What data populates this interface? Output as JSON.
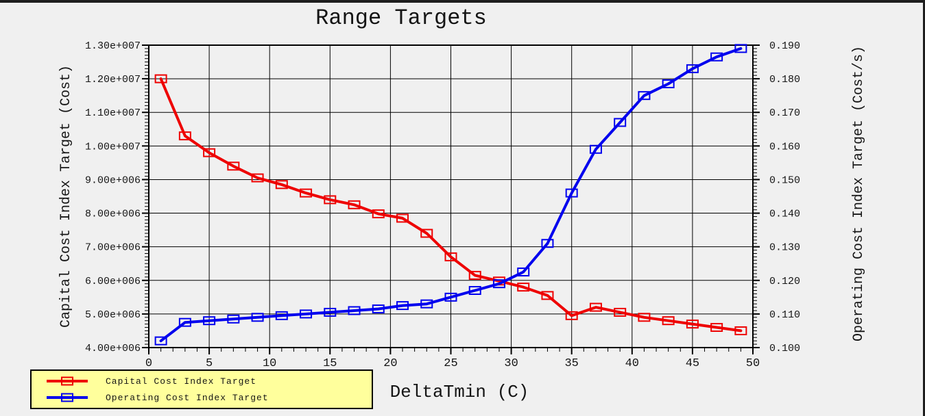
{
  "chart_data": {
    "type": "line",
    "title": "Range Targets",
    "xlabel": "DeltaTmin (C)",
    "grid": true,
    "legend_position": "bottom-left",
    "x_axis": {
      "min": 0,
      "max": 50,
      "major_step": 5,
      "minor_step": 1,
      "tick_labels": [
        "0",
        "5",
        "10",
        "15",
        "20",
        "25",
        "30",
        "35",
        "40",
        "45",
        "50"
      ]
    },
    "left_axis": {
      "label": "Capital Cost Index Target (Cost)",
      "min": 4000000,
      "max": 13000000,
      "major_step": 1000000,
      "minor_step": 100000,
      "tick_labels_top_to_bottom": [
        "1.30e+007",
        "1.20e+007",
        "1.10e+007",
        "1.00e+007",
        "9.00e+006",
        "8.00e+006",
        "7.00e+006",
        "6.00e+006",
        "5.00e+006",
        "4.00e+006"
      ]
    },
    "right_axis": {
      "label": "Operating Cost Index Target (Cost/s)",
      "min": 0.1,
      "max": 0.19,
      "major_step": 0.01,
      "minor_step": 0.001,
      "tick_labels_top_to_bottom": [
        "0.190",
        "0.180",
        "0.170",
        "0.160",
        "0.150",
        "0.140",
        "0.130",
        "0.120",
        "0.110",
        "0.100"
      ]
    },
    "x": [
      1,
      3,
      5,
      7,
      9,
      11,
      13,
      15,
      17,
      19,
      21,
      23,
      25,
      27,
      29,
      31,
      33,
      35,
      37,
      39,
      41,
      43,
      45,
      47,
      49
    ],
    "series": [
      {
        "name": "Capital Cost Index Target",
        "axis": "left",
        "color": "#ee0000",
        "marker": "open-rect",
        "values": [
          12000000,
          10300000,
          9800000,
          9400000,
          9050000,
          8850000,
          8600000,
          8400000,
          8250000,
          7980000,
          7850000,
          7400000,
          6700000,
          6150000,
          5980000,
          5800000,
          5550000,
          4950000,
          5200000,
          5050000,
          4900000,
          4800000,
          4700000,
          4600000,
          4500000
        ]
      },
      {
        "name": "Operating Cost Index Target",
        "axis": "right",
        "color": "#0000ee",
        "marker": "open-rect",
        "values": [
          0.102,
          0.1075,
          0.108,
          0.1085,
          0.109,
          0.1095,
          0.11,
          0.1105,
          0.111,
          0.1115,
          0.1125,
          0.113,
          0.115,
          0.117,
          0.119,
          0.1225,
          0.131,
          0.146,
          0.159,
          0.167,
          0.175,
          0.1785,
          0.183,
          0.1865,
          0.189
        ]
      }
    ]
  },
  "colors": {
    "background": "#f0f0f0",
    "window_border": "#1e1e1e",
    "grid": "#000000",
    "frame": "#000000",
    "legend_background": "#ffff9c",
    "legend_border": "#000000"
  }
}
